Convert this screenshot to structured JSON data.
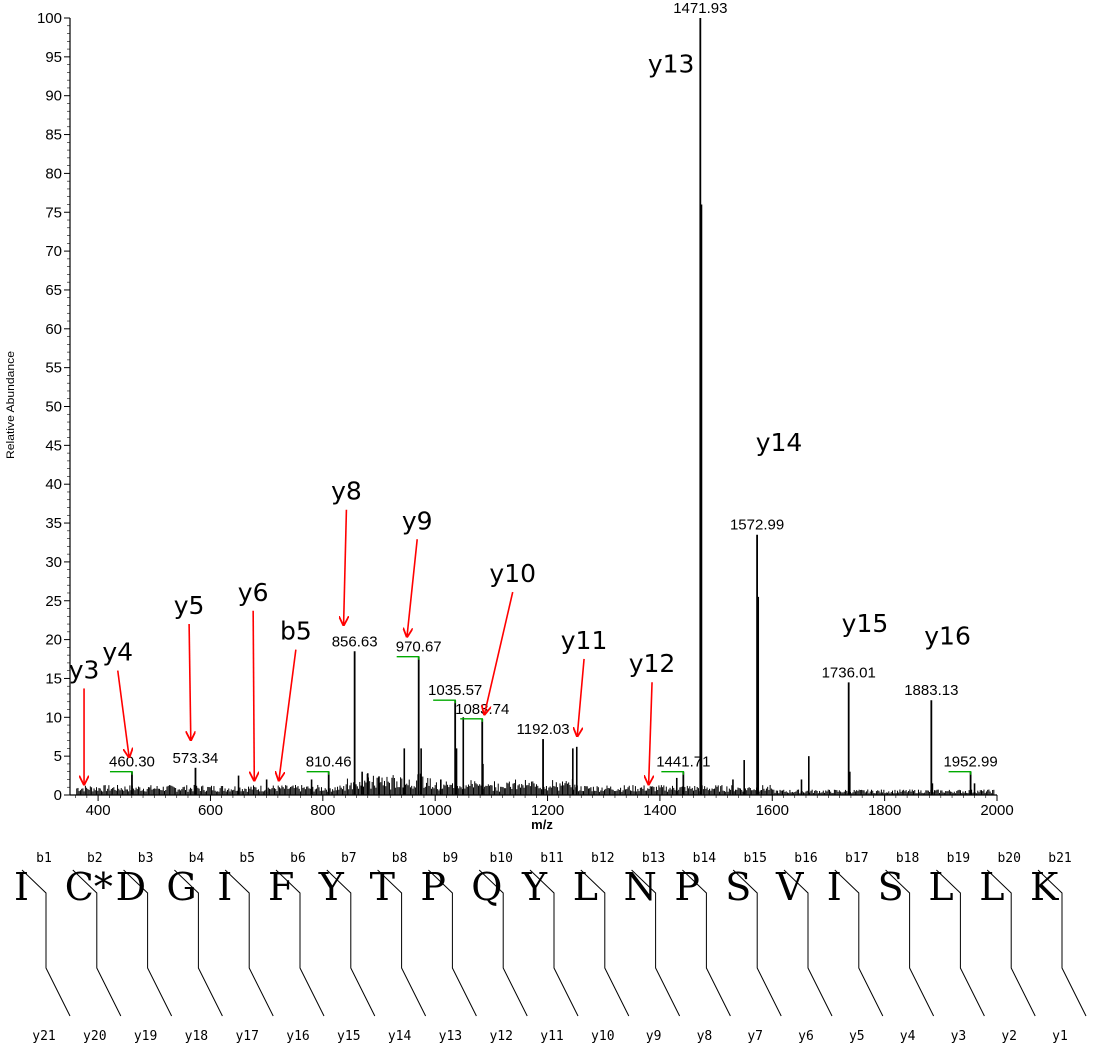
{
  "chart_data": {
    "type": "spectrum",
    "title_fragment": "",
    "xlabel": "m/z",
    "ylabel": "Relative Abundance",
    "xlim": [
      350,
      2000
    ],
    "ylim": [
      0,
      100
    ],
    "x_ticks": [
      400,
      600,
      800,
      1000,
      1200,
      1400,
      1600,
      1800,
      2000
    ],
    "y_ticks": [
      0,
      5,
      10,
      15,
      20,
      25,
      30,
      35,
      40,
      45,
      50,
      55,
      60,
      65,
      70,
      75,
      80,
      85,
      90,
      95,
      100
    ],
    "labeled_peaks": [
      {
        "mz": 460.3,
        "intensity": 3,
        "label": "460.30"
      },
      {
        "mz": 573.34,
        "intensity": 3.5,
        "label": "573.34"
      },
      {
        "mz": 810.46,
        "intensity": 3,
        "label": "810.46"
      },
      {
        "mz": 856.63,
        "intensity": 18.5,
        "label": "856.63"
      },
      {
        "mz": 970.67,
        "intensity": 17.8,
        "label": "970.67"
      },
      {
        "mz": 1035.57,
        "intensity": 12.2,
        "label": "1035.57"
      },
      {
        "mz": 1083.74,
        "intensity": 9.8,
        "label": "1083.74"
      },
      {
        "mz": 1192.03,
        "intensity": 7.2,
        "label": "1192.03"
      },
      {
        "mz": 1441.71,
        "intensity": 3,
        "label": "1441.71"
      },
      {
        "mz": 1471.93,
        "intensity": 100,
        "label": "1471.93"
      },
      {
        "mz": 1572.99,
        "intensity": 33.5,
        "label": "1572.99"
      },
      {
        "mz": 1736.01,
        "intensity": 14.5,
        "label": "1736.01"
      },
      {
        "mz": 1883.13,
        "intensity": 12.2,
        "label": "1883.13"
      },
      {
        "mz": 1952.99,
        "intensity": 3,
        "label": "1952.99"
      }
    ],
    "other_peaks": [
      {
        "mz": 945,
        "intensity": 6
      },
      {
        "mz": 975,
        "intensity": 6
      },
      {
        "mz": 1038,
        "intensity": 6
      },
      {
        "mz": 1050,
        "intensity": 10
      },
      {
        "mz": 1085,
        "intensity": 4
      },
      {
        "mz": 1245,
        "intensity": 6
      },
      {
        "mz": 1252,
        "intensity": 6.2
      },
      {
        "mz": 1474,
        "intensity": 76
      },
      {
        "mz": 1550,
        "intensity": 4.5
      },
      {
        "mz": 1575,
        "intensity": 25.5
      },
      {
        "mz": 1652,
        "intensity": 2
      },
      {
        "mz": 1665,
        "intensity": 5
      },
      {
        "mz": 1738,
        "intensity": 3
      },
      {
        "mz": 1885,
        "intensity": 1.5
      },
      {
        "mz": 650,
        "intensity": 2.5
      },
      {
        "mz": 700,
        "intensity": 2
      },
      {
        "mz": 780,
        "intensity": 2
      },
      {
        "mz": 870,
        "intensity": 3
      },
      {
        "mz": 880,
        "intensity": 2.8
      },
      {
        "mz": 900,
        "intensity": 2.4
      },
      {
        "mz": 1010,
        "intensity": 2
      },
      {
        "mz": 1430,
        "intensity": 2.2
      },
      {
        "mz": 1530,
        "intensity": 2
      },
      {
        "mz": 1960,
        "intensity": 1.5
      }
    ],
    "ion_annotations": [
      {
        "label": "y3",
        "mz": 375,
        "intensity": 1.5,
        "label_mz": 375,
        "label_y": 15
      },
      {
        "label": "y4",
        "mz": 455,
        "intensity": 5,
        "label_mz": 435,
        "label_y": 17.3
      },
      {
        "label": "y5",
        "mz": 565,
        "intensity": 7.2,
        "label_mz": 562,
        "label_y": 23.3
      },
      {
        "label": "y6",
        "mz": 678,
        "intensity": 2,
        "label_mz": 676,
        "label_y": 25
      },
      {
        "label": "b5",
        "mz": 722,
        "intensity": 2,
        "label_mz": 752,
        "label_y": 20
      },
      {
        "label": "y8",
        "mz": 837,
        "intensity": 22,
        "label_mz": 842,
        "label_y": 38
      },
      {
        "label": "y9",
        "mz": 950,
        "intensity": 20.5,
        "label_mz": 968,
        "label_y": 34.2
      },
      {
        "label": "y10",
        "mz": 1088,
        "intensity": 10.5,
        "label_mz": 1138,
        "label_y": 27.4
      },
      {
        "label": "y11",
        "mz": 1253,
        "intensity": 7.7,
        "label_mz": 1265,
        "label_y": 18.8
      },
      {
        "label": "y12",
        "mz": 1380,
        "intensity": 1.5,
        "label_mz": 1386,
        "label_y": 15.8
      },
      {
        "label": "y13",
        "mz": 0,
        "intensity": 0,
        "label_mz": 1420,
        "label_y": 93
      },
      {
        "label": "y14",
        "mz": 0,
        "intensity": 0,
        "label_mz": 1612,
        "label_y": 44.3
      },
      {
        "label": "y15",
        "mz": 0,
        "intensity": 0,
        "label_mz": 1765,
        "label_y": 21
      },
      {
        "label": "y16",
        "mz": 0,
        "intensity": 0,
        "label_mz": 1912,
        "label_y": 19.4
      }
    ],
    "grid": false,
    "legend": "none"
  },
  "sequence": {
    "residues": [
      "I",
      "C*",
      "D",
      "G",
      "I",
      "F",
      "Y",
      "T",
      "P",
      "Q",
      "Y",
      "L",
      "N",
      "P",
      "S",
      "V",
      "I",
      "S",
      "L",
      "L",
      "K"
    ],
    "b_ions": [
      "b1",
      "b2",
      "b3",
      "b4",
      "b5",
      "b6",
      "b7",
      "b8",
      "b9",
      "b10",
      "b11",
      "b12",
      "b13",
      "b14",
      "b15",
      "b16",
      "b17",
      "b18",
      "b19",
      "b20",
      "b21"
    ],
    "y_ions": [
      "y21",
      "y20",
      "y19",
      "y18",
      "y17",
      "y16",
      "y15",
      "y14",
      "y13",
      "y12",
      "y11",
      "y10",
      "y9",
      "y8",
      "y7",
      "y6",
      "y5",
      "y4",
      "y3",
      "y2",
      "y1"
    ]
  },
  "colors": {
    "peak": "#000000",
    "arrow": "#ff0000",
    "bracket": "#00aa00",
    "title_blue": "#1a3a9e"
  }
}
